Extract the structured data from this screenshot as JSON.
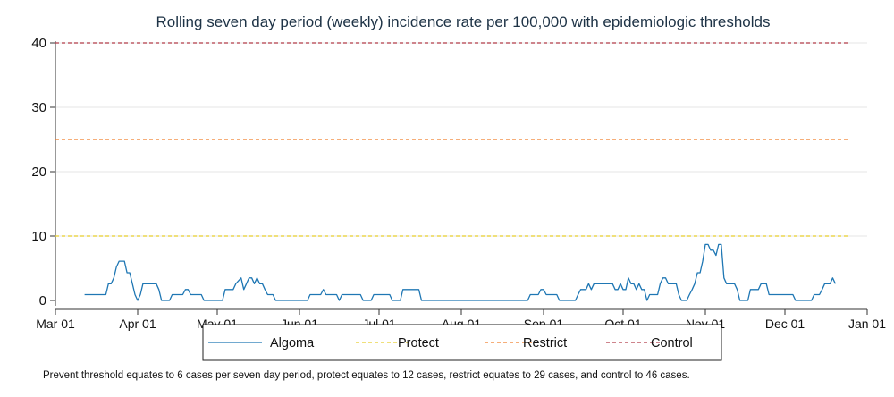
{
  "chart_data": {
    "type": "line",
    "title": "Rolling seven day period (weekly) incidence rate per 100,000 with epidemiologic thresholds",
    "xlabel": "",
    "ylabel": "",
    "ylim": [
      0,
      40
    ],
    "yticks": [
      0,
      10,
      20,
      30,
      40
    ],
    "xticks": [
      "Mar 01",
      "Apr 01",
      "May 01",
      "Jun 01",
      "Jul 01",
      "Aug 01",
      "Sep 01",
      "Oct 01",
      "Nov 01",
      "Dec 01",
      "Jan 01"
    ],
    "x_day_range": [
      "Mar 01",
      "Jan 01"
    ],
    "grid": true,
    "legend_position": "bottom",
    "series": [
      {
        "name": "Algoma",
        "color": "#1f77b4",
        "style": "solid",
        "points": [
          [
            "Mar 12",
            0.9
          ],
          [
            "Mar 20",
            0.9
          ],
          [
            "Mar 21",
            2.6
          ],
          [
            "Mar 22",
            2.6
          ],
          [
            "Mar 23",
            3.5
          ],
          [
            "Mar 24",
            5.2
          ],
          [
            "Mar 25",
            6.1
          ],
          [
            "Mar 27",
            6.1
          ],
          [
            "Mar 28",
            4.3
          ],
          [
            "Mar 29",
            4.3
          ],
          [
            "Mar 30",
            2.6
          ],
          [
            "Mar 31",
            0.9
          ],
          [
            "Apr 01",
            0
          ],
          [
            "Apr 02",
            0.9
          ],
          [
            "Apr 03",
            2.6
          ],
          [
            "Apr 08",
            2.6
          ],
          [
            "Apr 09",
            1.7
          ],
          [
            "Apr 10",
            0
          ],
          [
            "Apr 13",
            0
          ],
          [
            "Apr 14",
            0.9
          ],
          [
            "Apr 18",
            0.9
          ],
          [
            "Apr 19",
            1.7
          ],
          [
            "Apr 20",
            1.7
          ],
          [
            "Apr 21",
            0.9
          ],
          [
            "Apr 25",
            0.9
          ],
          [
            "Apr 26",
            0
          ],
          [
            "May 03",
            0
          ],
          [
            "May 04",
            1.7
          ],
          [
            "May 07",
            1.7
          ],
          [
            "May 08",
            2.6
          ],
          [
            "May 10",
            3.5
          ],
          [
            "May 11",
            1.7
          ],
          [
            "May 13",
            3.5
          ],
          [
            "May 14",
            3.5
          ],
          [
            "May 15",
            2.6
          ],
          [
            "May 16",
            3.5
          ],
          [
            "May 17",
            2.6
          ],
          [
            "May 18",
            2.6
          ],
          [
            "May 19",
            1.7
          ],
          [
            "May 20",
            0.9
          ],
          [
            "May 22",
            0.9
          ],
          [
            "May 23",
            0
          ],
          [
            "Jun 04",
            0
          ],
          [
            "Jun 05",
            0.9
          ],
          [
            "Jun 09",
            0.9
          ],
          [
            "Jun 10",
            1.7
          ],
          [
            "Jun 11",
            0.9
          ],
          [
            "Jun 15",
            0.9
          ],
          [
            "Jun 16",
            0
          ],
          [
            "Jun 17",
            0.9
          ],
          [
            "Jun 24",
            0.9
          ],
          [
            "Jun 25",
            0
          ],
          [
            "Jun 28",
            0
          ],
          [
            "Jun 29",
            0.9
          ],
          [
            "Jul 05",
            0.9
          ],
          [
            "Jul 06",
            0
          ],
          [
            "Jul 09",
            0
          ],
          [
            "Jul 10",
            1.7
          ],
          [
            "Jul 16",
            1.7
          ],
          [
            "Jul 17",
            0
          ],
          [
            "Aug 26",
            0
          ],
          [
            "Aug 27",
            0.9
          ],
          [
            "Aug 30",
            0.9
          ],
          [
            "Aug 31",
            1.7
          ],
          [
            "Sep 01",
            1.7
          ],
          [
            "Sep 02",
            0.9
          ],
          [
            "Sep 06",
            0.9
          ],
          [
            "Sep 07",
            0
          ],
          [
            "Sep 13",
            0
          ],
          [
            "Sep 14",
            0.9
          ],
          [
            "Sep 15",
            1.7
          ],
          [
            "Sep 17",
            1.7
          ],
          [
            "Sep 18",
            2.6
          ],
          [
            "Sep 19",
            1.7
          ],
          [
            "Sep 20",
            2.6
          ],
          [
            "Sep 27",
            2.6
          ],
          [
            "Sep 28",
            1.7
          ],
          [
            "Sep 29",
            1.7
          ],
          [
            "Sep 30",
            2.6
          ],
          [
            "Oct 01",
            1.7
          ],
          [
            "Oct 02",
            1.7
          ],
          [
            "Oct 03",
            3.5
          ],
          [
            "Oct 04",
            2.6
          ],
          [
            "Oct 05",
            2.6
          ],
          [
            "Oct 06",
            1.7
          ],
          [
            "Oct 07",
            2.6
          ],
          [
            "Oct 08",
            1.7
          ],
          [
            "Oct 09",
            1.7
          ],
          [
            "Oct 10",
            0
          ],
          [
            "Oct 11",
            0.9
          ],
          [
            "Oct 14",
            0.9
          ],
          [
            "Oct 15",
            2.6
          ],
          [
            "Oct 16",
            3.5
          ],
          [
            "Oct 17",
            3.5
          ],
          [
            "Oct 18",
            2.6
          ],
          [
            "Oct 21",
            2.6
          ],
          [
            "Oct 22",
            0.9
          ],
          [
            "Oct 23",
            0
          ],
          [
            "Oct 25",
            0
          ],
          [
            "Oct 26",
            0.9
          ],
          [
            "Oct 27",
            1.7
          ],
          [
            "Oct 28",
            2.6
          ],
          [
            "Oct 29",
            4.3
          ],
          [
            "Oct 30",
            4.3
          ],
          [
            "Oct 31",
            6.1
          ],
          [
            "Nov 01",
            8.7
          ],
          [
            "Nov 02",
            8.7
          ],
          [
            "Nov 03",
            7.8
          ],
          [
            "Nov 04",
            7.8
          ],
          [
            "Nov 05",
            7.0
          ],
          [
            "Nov 06",
            8.7
          ],
          [
            "Nov 07",
            8.7
          ],
          [
            "Nov 08",
            3.5
          ],
          [
            "Nov 09",
            2.6
          ],
          [
            "Nov 12",
            2.6
          ],
          [
            "Nov 13",
            1.7
          ],
          [
            "Nov 14",
            0
          ],
          [
            "Nov 17",
            0
          ],
          [
            "Nov 18",
            1.7
          ],
          [
            "Nov 21",
            1.7
          ],
          [
            "Nov 22",
            2.6
          ],
          [
            "Nov 24",
            2.6
          ],
          [
            "Nov 25",
            0.9
          ],
          [
            "Dec 04",
            0.9
          ],
          [
            "Dec 05",
            0
          ],
          [
            "Dec 11",
            0
          ],
          [
            "Dec 12",
            0.9
          ],
          [
            "Dec 14",
            0.9
          ],
          [
            "Dec 15",
            1.7
          ],
          [
            "Dec 16",
            2.6
          ],
          [
            "Dec 18",
            2.6
          ],
          [
            "Dec 19",
            3.5
          ],
          [
            "Dec 20",
            2.6
          ]
        ]
      },
      {
        "name": "Protect",
        "color": "#e8cd2a",
        "style": "dashed",
        "value": 10
      },
      {
        "name": "Restrict",
        "color": "#f07d29",
        "style": "dashed",
        "value": 25
      },
      {
        "name": "Control",
        "color": "#b03a48",
        "style": "dashed",
        "value": 40
      }
    ],
    "note": "Prevent threshold equates to 6 cases per seven day period, protect equates to 12 cases, restrict equates to 29 cases, and control to 46 cases."
  }
}
